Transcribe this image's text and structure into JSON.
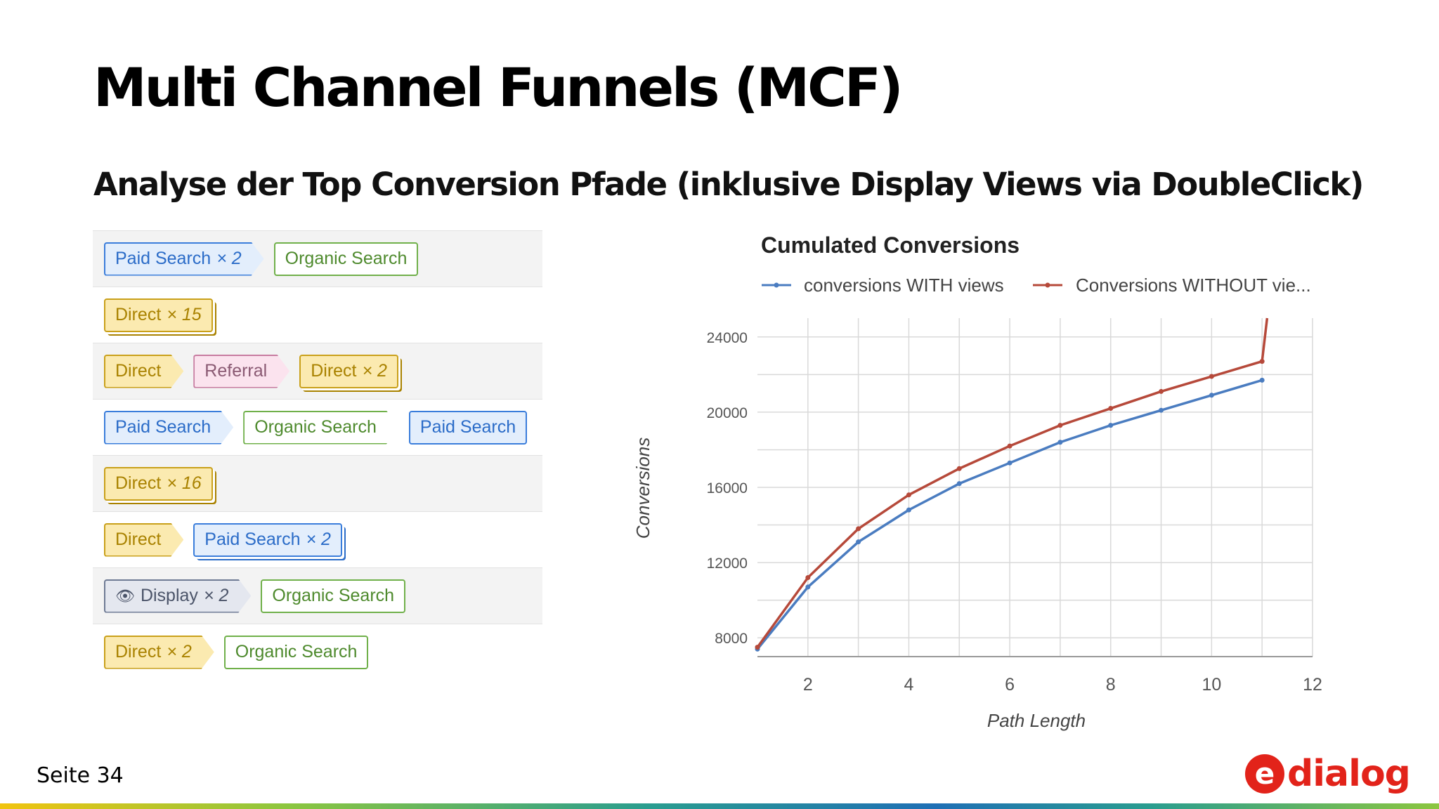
{
  "slide": {
    "title": "Multi Channel Funnels (MCF)",
    "subtitle": "Analyse der Top Conversion Pfade (inklusive Display Views via DoubleClick)",
    "page_label": "Seite 34",
    "logo_letter": "e",
    "logo_text": "dialog"
  },
  "paths": [
    [
      {
        "label": "Paid Search",
        "mult": "× 2",
        "type": "paid"
      },
      {
        "label": "Organic Search",
        "mult": "",
        "type": "organic"
      }
    ],
    [
      {
        "label": "Direct",
        "mult": "× 15",
        "type": "direct"
      }
    ],
    [
      {
        "label": "Direct",
        "mult": "",
        "type": "direct"
      },
      {
        "label": "Referral",
        "mult": "",
        "type": "referral"
      },
      {
        "label": "Direct",
        "mult": "× 2",
        "type": "direct"
      }
    ],
    [
      {
        "label": "Paid Search",
        "mult": "",
        "type": "paid"
      },
      {
        "label": "Organic Search",
        "mult": "",
        "type": "organic"
      },
      {
        "label": "Paid Search",
        "mult": "",
        "type": "paid"
      }
    ],
    [
      {
        "label": "Direct",
        "mult": "× 16",
        "type": "direct"
      }
    ],
    [
      {
        "label": "Direct",
        "mult": "",
        "type": "direct"
      },
      {
        "label": "Paid Search",
        "mult": "× 2",
        "type": "paid"
      }
    ],
    [
      {
        "label": "Display",
        "mult": "× 2",
        "type": "display"
      },
      {
        "label": "Organic Search",
        "mult": "",
        "type": "organic"
      }
    ],
    [
      {
        "label": "Direct",
        "mult": "× 2",
        "type": "direct"
      },
      {
        "label": "Organic Search",
        "mult": "",
        "type": "organic"
      }
    ]
  ],
  "colors": {
    "series_with": "#4a7cc0",
    "series_without": "#b6493a",
    "grid": "#d9d9d9",
    "logo": "#e2231a"
  },
  "chart_data": {
    "type": "line",
    "title": "Cumulated Conversions",
    "xlabel": "Path Length",
    "ylabel": "Conversions",
    "xlim": [
      1,
      12
    ],
    "ylim": [
      7000,
      25000
    ],
    "xticks": [
      2,
      4,
      6,
      8,
      10,
      12
    ],
    "yticks": [
      8000,
      12000,
      16000,
      20000,
      24000
    ],
    "grid": true,
    "legend_position": "top",
    "series": [
      {
        "name": "conversions WITH views",
        "x": [
          1,
          2,
          3,
          4,
          5,
          6,
          7,
          8,
          9,
          10,
          11
        ],
        "y": [
          7400,
          10700,
          13100,
          14800,
          16200,
          17300,
          18400,
          19300,
          20100,
          20900,
          21700
        ]
      },
      {
        "name": "Conversions WITHOUT vie...",
        "x": [
          1,
          2,
          3,
          4,
          5,
          6,
          7,
          8,
          9,
          10,
          11,
          11.1
        ],
        "y": [
          7500,
          11200,
          13800,
          15600,
          17000,
          18200,
          19300,
          20200,
          21100,
          21900,
          22700,
          25000
        ]
      }
    ]
  }
}
